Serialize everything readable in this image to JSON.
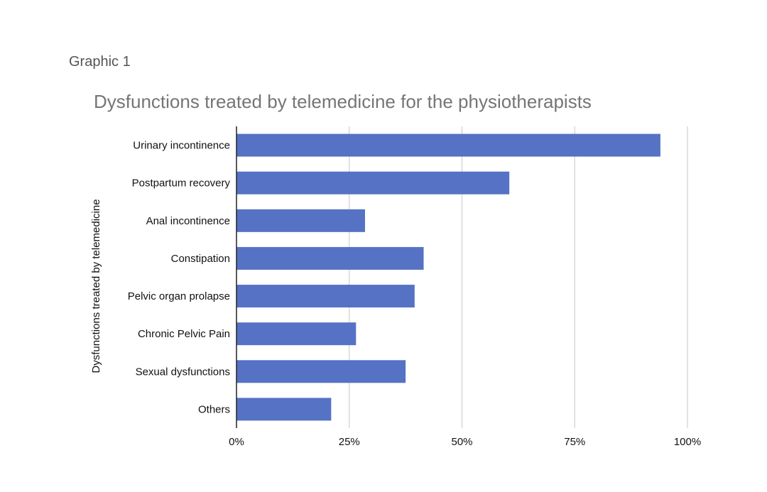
{
  "caption": "Graphic 1",
  "chart_data": {
    "type": "bar",
    "orientation": "horizontal",
    "title": "Dysfunctions treated by telemedicine for the physiotherapists",
    "ylabel": "Dysfunctions treated by telemedicine",
    "xlabel": "",
    "categories": [
      "Urinary incontinence",
      "Postpartum recovery",
      "Anal incontinence",
      "Constipation",
      "Pelvic organ prolapse",
      "Chronic Pelvic Pain",
      "Sexual dysfunctions",
      "Others"
    ],
    "values": [
      94,
      60.5,
      28.5,
      41.5,
      39.5,
      26.5,
      37.5,
      21
    ],
    "xlim": [
      0,
      100
    ],
    "xticks": [
      0,
      25,
      50,
      75,
      100
    ],
    "xtick_labels": [
      "0%",
      "25%",
      "50%",
      "75%",
      "100%"
    ],
    "grid": "vertical",
    "legend": "none",
    "bar_color": "#5572c4",
    "grid_color": "#d0d0d0"
  }
}
